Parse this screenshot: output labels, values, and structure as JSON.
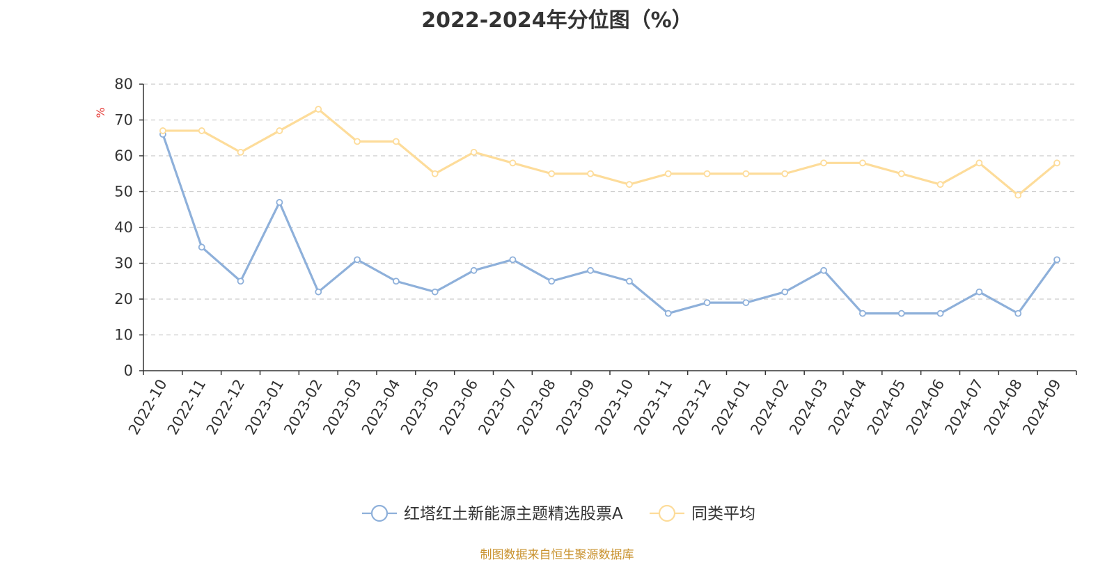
{
  "chart_data": {
    "type": "line",
    "title": "2022-2024年分位图（%）",
    "ylabel": "%",
    "ylim": [
      0,
      80
    ],
    "yticks": [
      0,
      10,
      20,
      30,
      40,
      50,
      60,
      70,
      80
    ],
    "grid": true,
    "legend_position": "bottom",
    "categories": [
      "2022-10",
      "2022-11",
      "2022-12",
      "2023-01",
      "2023-02",
      "2023-03",
      "2023-04",
      "2023-05",
      "2023-06",
      "2023-07",
      "2023-08",
      "2023-09",
      "2023-10",
      "2023-11",
      "2023-12",
      "2024-01",
      "2024-02",
      "2024-03",
      "2024-04",
      "2024-05",
      "2024-06",
      "2024-07",
      "2024-08",
      "2024-09"
    ],
    "series": [
      {
        "name": "红塔红土新能源主题精选股票A",
        "color": "#8eb0da",
        "values": [
          66,
          34.5,
          25,
          47,
          22,
          31,
          25,
          22,
          28,
          31,
          25,
          28,
          25,
          16,
          19,
          19,
          22,
          28,
          16,
          16,
          16,
          22,
          16,
          31
        ]
      },
      {
        "name": "同类平均",
        "color": "#fddc9a",
        "values": [
          67,
          67,
          61,
          67,
          73,
          64,
          64,
          55,
          61,
          58,
          55,
          55,
          52,
          55,
          55,
          55,
          55,
          58,
          58,
          55,
          52,
          58,
          49,
          58
        ]
      }
    ]
  },
  "source_note": "制图数据来自恒生聚源数据库"
}
